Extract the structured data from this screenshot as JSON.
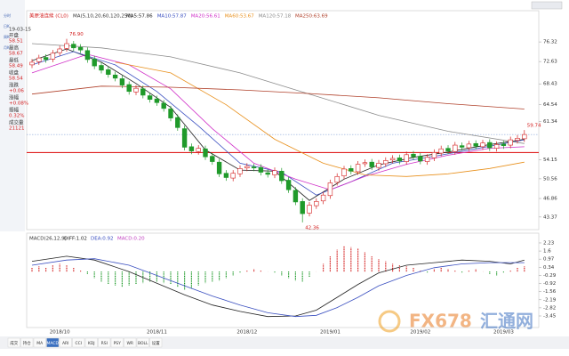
{
  "chart_data": [
    {
      "type": "candlestick",
      "title": "美原油连续 (CL0)",
      "indicator": "MA(5,10,20,60,120,250)",
      "open": [
        72.0,
        72.6,
        73.4,
        73.1,
        74.3,
        75.1,
        75.9,
        75.3,
        74.7,
        73.1,
        71.9,
        71.1,
        70.1,
        69.4,
        68.3,
        66.9,
        67.5,
        66.2,
        65.6,
        64.8,
        63.7,
        62.1,
        60.0,
        56.6,
        55.7,
        56.2,
        54.8,
        53.7,
        51.6,
        50.7,
        51.5,
        52.6,
        52.8,
        52.7,
        51.7,
        51.3,
        52.0,
        50.3,
        48.4,
        46.3,
        44.1,
        45.5,
        46.4,
        47.4,
        49.9,
        51.1,
        52.5,
        51.9,
        53.4,
        53.7,
        52.7,
        53.4,
        54.1,
        54.5,
        53.8,
        55.2,
        54.8,
        53.8,
        54.5,
        55.4,
        56.3,
        55.7,
        56.8,
        56.4,
        57.2,
        56.6,
        57.4,
        56.3,
        57.1,
        56.9,
        57.8,
        58.1
      ],
      "high": [
        73.1,
        73.9,
        74.0,
        74.8,
        75.6,
        76.9,
        76.5,
        75.9,
        75.3,
        73.7,
        72.5,
        71.7,
        70.7,
        70.0,
        68.9,
        68.2,
        68.1,
        66.8,
        66.2,
        65.4,
        64.3,
        62.7,
        60.6,
        57.2,
        56.9,
        56.8,
        55.4,
        54.3,
        52.2,
        52.2,
        53.1,
        53.5,
        53.4,
        53.3,
        52.3,
        52.7,
        52.6,
        50.9,
        49.0,
        46.9,
        46.2,
        46.9,
        48.1,
        50.4,
        51.6,
        53.0,
        53.1,
        53.9,
        54.2,
        54.3,
        54.1,
        54.6,
        55.0,
        55.1,
        55.7,
        55.8,
        55.4,
        55.2,
        56.1,
        56.8,
        56.9,
        57.5,
        57.4,
        57.7,
        57.8,
        57.9,
        58.0,
        57.6,
        57.7,
        58.5,
        58.8,
        59.74
      ],
      "low": [
        71.4,
        72.0,
        72.4,
        72.5,
        73.7,
        74.5,
        74.6,
        74.2,
        72.4,
        71.2,
        70.4,
        69.6,
        68.9,
        67.6,
        66.4,
        66.3,
        65.7,
        64.9,
        64.3,
        63.2,
        61.4,
        59.6,
        55.9,
        55.2,
        55.1,
        54.1,
        53.2,
        50.9,
        50.2,
        50.1,
        50.9,
        52.0,
        52.0,
        51.2,
        50.8,
        50.7,
        49.6,
        47.9,
        45.6,
        42.36,
        43.5,
        44.9,
        45.8,
        46.8,
        49.3,
        50.5,
        51.4,
        51.3,
        52.8,
        52.2,
        52.1,
        52.8,
        53.5,
        53.3,
        53.2,
        54.1,
        53.3,
        53.2,
        53.9,
        54.8,
        55.2,
        55.1,
        55.9,
        55.8,
        56.1,
        56.0,
        55.8,
        55.7,
        56.2,
        56.3,
        57.2,
        57.5
      ],
      "close": [
        72.5,
        73.3,
        73.0,
        74.2,
        75.0,
        76.0,
        75.2,
        74.8,
        73.0,
        71.8,
        71.0,
        70.2,
        69.5,
        68.2,
        67.0,
        67.6,
        66.3,
        65.5,
        64.9,
        63.8,
        62.0,
        60.2,
        56.5,
        55.8,
        56.3,
        54.7,
        53.8,
        51.5,
        50.8,
        51.6,
        52.5,
        52.9,
        52.6,
        51.8,
        51.4,
        52.1,
        50.2,
        48.5,
        46.2,
        44.0,
        45.6,
        46.3,
        47.5,
        49.8,
        51.0,
        52.4,
        52.0,
        53.3,
        53.6,
        52.8,
        53.5,
        54.0,
        54.4,
        53.9,
        55.1,
        54.7,
        53.9,
        54.6,
        55.5,
        56.2,
        55.8,
        56.9,
        56.5,
        57.1,
        56.7,
        57.3,
        56.4,
        57.0,
        56.8,
        57.9,
        58.2,
        58.9
      ],
      "up_color": "#d42020",
      "down_color": "#1f9a2a",
      "series": [
        {
          "name": "MA5:57.86",
          "color": "#222222",
          "x": [
            0,
            5,
            10,
            15,
            20,
            25,
            30,
            35,
            40,
            45,
            50,
            55,
            60,
            65,
            71
          ],
          "values": [
            72.8,
            75.0,
            72.5,
            68.5,
            64.0,
            56.0,
            52.2,
            52.0,
            46.5,
            50.5,
            53.2,
            54.6,
            55.6,
            56.8,
            58.0
          ]
        },
        {
          "name": "MA10:57.87",
          "color": "#3a4fc0",
          "x": [
            0,
            6,
            12,
            18,
            24,
            30,
            36,
            41,
            46,
            52,
            58,
            64,
            71
          ],
          "values": [
            72.0,
            74.5,
            72.0,
            67.0,
            60.5,
            53.5,
            51.8,
            47.5,
            50.0,
            53.5,
            54.8,
            56.2,
            57.9
          ]
        },
        {
          "name": "MA20:56.61",
          "color": "#d030c8",
          "x": [
            0,
            8,
            14,
            20,
            26,
            32,
            38,
            43,
            48,
            54,
            60,
            66,
            71
          ],
          "values": [
            70.5,
            74.0,
            72.0,
            67.5,
            60.0,
            53.5,
            50.5,
            48.5,
            51.0,
            53.3,
            55.0,
            56.3,
            56.6
          ]
        },
        {
          "name": "MA60:53.67",
          "color": "#e8901c",
          "x": [
            12,
            20,
            28,
            35,
            42,
            48,
            54,
            60,
            66,
            71
          ],
          "values": [
            72.5,
            70.5,
            64.5,
            58.0,
            53.5,
            51.3,
            51.0,
            51.5,
            52.5,
            53.7
          ]
        },
        {
          "name": "MA120:57.18",
          "color": "#8c8c8c",
          "x": [
            0,
            10,
            20,
            30,
            40,
            50,
            60,
            71
          ],
          "values": [
            76.0,
            75.2,
            73.5,
            70.5,
            66.5,
            62.5,
            59.5,
            57.2
          ]
        },
        {
          "name": "MA250:63.69",
          "color": "#b0402a",
          "x": [
            0,
            10,
            20,
            30,
            40,
            50,
            60,
            71
          ],
          "values": [
            66.5,
            68.0,
            67.8,
            67.3,
            66.6,
            65.8,
            64.7,
            63.7
          ]
        }
      ],
      "hline": {
        "value": 55.5,
        "color": "#e02020"
      },
      "annotations": [
        {
          "text": "76.90",
          "x": 5,
          "y": 76.9
        },
        {
          "text": "42.36",
          "x": 39,
          "y": 42.36
        },
        {
          "text": "59.74",
          "x": 71,
          "y": 59.74
        }
      ],
      "ylim": [
        41.0,
        82.2
      ],
      "yticks": [
        76.32,
        72.63,
        68.43,
        64.54,
        61.34,
        54.15,
        50.56,
        46.86,
        43.37
      ],
      "date_labels": [
        {
          "text": "2018/10",
          "x": 4
        },
        {
          "text": "2018/11",
          "x": 18
        },
        {
          "text": "2018/12",
          "x": 31
        },
        {
          "text": "2019/01",
          "x": 43
        },
        {
          "text": "2019/02",
          "x": 56
        },
        {
          "text": "2019/03",
          "x": 68
        }
      ]
    },
    {
      "type": "macd",
      "title": "MACD(26,12,9)",
      "histogram": [
        0.3,
        0.4,
        0.3,
        0.5,
        0.6,
        0.5,
        0.3,
        0.1,
        -0.2,
        -0.5,
        -0.8,
        -1.0,
        -1.1,
        -1.2,
        -1.1,
        -1.0,
        -0.9,
        -0.8,
        -0.8,
        -0.9,
        -1.0,
        -1.2,
        -1.4,
        -1.3,
        -1.1,
        -0.9,
        -0.8,
        -0.7,
        -0.5,
        -0.3,
        -0.1,
        0.1,
        0.2,
        0.1,
        0.0,
        -0.1,
        -0.3,
        -0.5,
        -0.7,
        -0.8,
        -0.4,
        0.0,
        0.6,
        1.2,
        1.7,
        2.0,
        1.9,
        1.8,
        1.5,
        1.2,
        1.0,
        0.8,
        0.6,
        0.5,
        0.4,
        0.3,
        0.1,
        -0.1,
        0.2,
        0.3,
        0.2,
        0.1,
        -0.1,
        0.1,
        0.2,
        0.0,
        -0.2,
        -0.3,
        -0.1,
        0.1,
        0.3,
        0.4
      ],
      "up_color": "#d42020",
      "down_color": "#1f9a2a",
      "histogram_name": "MACD:0.20",
      "histogram_color": "#c040c0",
      "series": [
        {
          "name": "DIFF:1.02",
          "color": "#222222",
          "x": [
            0,
            5,
            9,
            14,
            18,
            22,
            26,
            30,
            34,
            38,
            41,
            44,
            47,
            50,
            54,
            58,
            62,
            66,
            69,
            71
          ],
          "values": [
            0.8,
            1.2,
            0.9,
            0.0,
            -0.9,
            -1.8,
            -2.6,
            -3.1,
            -3.5,
            -3.45,
            -3.0,
            -2.0,
            -1.0,
            -0.1,
            0.5,
            0.7,
            0.9,
            0.8,
            0.6,
            0.9
          ]
        },
        {
          "name": "DEA:0.92",
          "color": "#3a4fc0",
          "x": [
            0,
            5,
            9,
            14,
            18,
            22,
            26,
            30,
            34,
            38,
            41,
            44,
            47,
            50,
            54,
            58,
            62,
            66,
            69,
            71
          ],
          "values": [
            0.5,
            0.9,
            1.0,
            0.5,
            -0.3,
            -1.1,
            -1.9,
            -2.6,
            -3.2,
            -3.5,
            -3.4,
            -2.8,
            -2.0,
            -1.1,
            -0.3,
            0.3,
            0.6,
            0.7,
            0.7,
            0.7
          ]
        }
      ],
      "ylim": [
        -4.35,
        2.99
      ],
      "yticks": [
        2.23,
        1.6,
        0.97,
        0.34,
        -0.29,
        -0.92,
        -1.56,
        -2.19,
        -2.82,
        -3.45
      ]
    }
  ],
  "sidebar": {
    "date": "19-03-15",
    "fields": [
      [
        "开盘",
        "58.51"
      ],
      [
        "最高",
        "58.67"
      ],
      [
        "最低",
        "58.49"
      ],
      [
        "收盘",
        "58.54"
      ],
      [
        "涨跌",
        "+0.06"
      ],
      [
        "涨幅",
        "+0.08%"
      ],
      [
        "振幅",
        "0.32%"
      ],
      [
        "成交量",
        "21121"
      ]
    ]
  },
  "side_tabs": [
    "分时",
    "日K",
    "周K",
    "月K"
  ],
  "toolbar": [
    "成交",
    "持仓",
    "MA",
    "MACD",
    "ARI",
    "CCI",
    "KDJ",
    "RSI",
    "PSY",
    "WR",
    "BOLL",
    "设置"
  ],
  "watermark": {
    "brand": "FX678",
    "cn": "汇通网"
  }
}
